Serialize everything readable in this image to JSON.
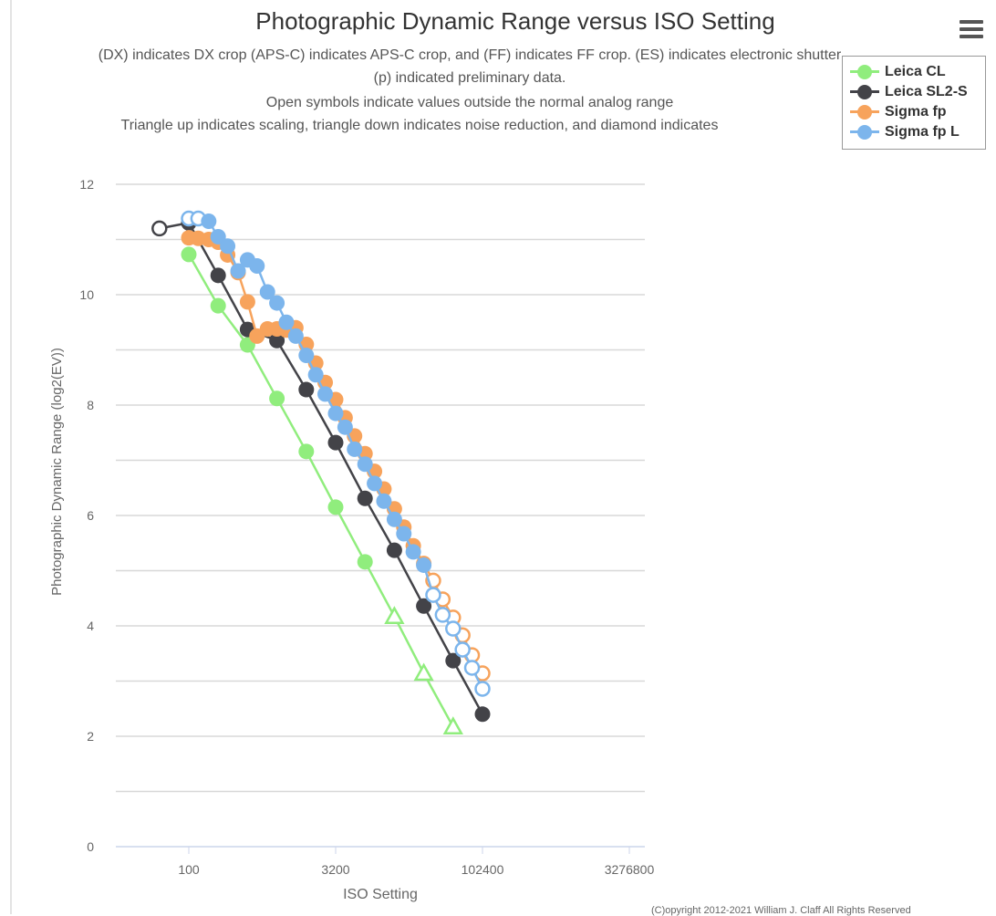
{
  "title": "Photographic Dynamic Range versus ISO Setting",
  "subtitle_lines": [
    "(DX) indicates DX crop (APS-C) indicates APS-C crop, and (FF) indicates FF crop. (ES) indicates electronic shutter",
    "(p) indicated preliminary data.",
    "Open symbols indicate values outside the normal analog range",
    "Triangle up indicates scaling, triangle down indicates noise reduction, and diamond indicates"
  ],
  "copyright": "(C)opyright 2012-2021 William J. Claff All Rights Reserved",
  "menu_icon": "hamburger-menu-icon",
  "chart_data": {
    "type": "line",
    "title": "Photographic Dynamic Range versus ISO Setting",
    "xlabel": "ISO Setting",
    "ylabel": "Photographic Dynamic Range (log2(EV))",
    "xscale": "log2",
    "xlim": [
      18,
      4700000
    ],
    "ylim": [
      0,
      12
    ],
    "xticks": [
      "100",
      "3200",
      "102400",
      "3276800"
    ],
    "xtick_values": [
      100,
      3200,
      102400,
      3276800
    ],
    "yticks": [
      "0",
      "2",
      "4",
      "6",
      "8",
      "10",
      "12"
    ],
    "ytick_values": [
      0,
      2,
      4,
      6,
      8,
      10,
      12
    ],
    "grid": true,
    "legend_position": "top-right",
    "series": [
      {
        "name": "Leica CL",
        "color": "#90ed7d",
        "x": [
          100,
          200,
          400,
          800,
          1600,
          3200,
          6400,
          12800,
          25600,
          51200
        ],
        "y": [
          10.73,
          9.8,
          9.09,
          8.12,
          7.16,
          6.15,
          5.16,
          4.17,
          3.14,
          2.17
        ],
        "marker": [
          "c",
          "c",
          "c",
          "c",
          "c",
          "c",
          "c",
          "to",
          "to",
          "to"
        ]
      },
      {
        "name": "Leica SL2-S",
        "color": "#434348",
        "x": [
          50,
          100,
          200,
          400,
          800,
          1600,
          3200,
          6400,
          12800,
          25600,
          51200,
          102400
        ],
        "y": [
          11.2,
          11.3,
          10.35,
          9.37,
          9.17,
          8.28,
          7.32,
          6.31,
          5.37,
          4.36,
          3.37,
          2.4
        ],
        "marker": [
          "o",
          "c",
          "c",
          "c",
          "c",
          "c",
          "c",
          "c",
          "c",
          "c",
          "c",
          "c"
        ]
      },
      {
        "name": "Sigma fp",
        "color": "#f7a35c",
        "x": [
          100,
          125,
          160,
          200,
          250,
          320,
          400,
          500,
          640,
          800,
          1000,
          1250,
          1600,
          2000,
          2500,
          3200,
          4000,
          5000,
          6400,
          8000,
          10000,
          12800,
          16000,
          20000,
          25600,
          32000,
          40000,
          51200,
          64000,
          80000,
          102400
        ],
        "y": [
          11.03,
          11.02,
          11.0,
          10.95,
          10.72,
          10.4,
          9.87,
          9.25,
          9.38,
          9.38,
          9.36,
          9.4,
          9.1,
          8.76,
          8.41,
          8.1,
          7.77,
          7.44,
          7.12,
          6.8,
          6.48,
          6.12,
          5.79,
          5.45,
          5.13,
          4.82,
          4.48,
          4.15,
          3.83,
          3.47,
          3.14
        ],
        "marker": [
          "c",
          "c",
          "c",
          "c",
          "c",
          "c",
          "c",
          "c",
          "c",
          "c",
          "c",
          "c",
          "c",
          "c",
          "c",
          "c",
          "c",
          "c",
          "c",
          "c",
          "c",
          "c",
          "c",
          "c",
          "c",
          "o",
          "o",
          "o",
          "o",
          "o",
          "o"
        ]
      },
      {
        "name": "Sigma fp L",
        "color": "#7cb5ec",
        "x": [
          100,
          125,
          160,
          200,
          250,
          320,
          400,
          500,
          640,
          800,
          1000,
          1250,
          1600,
          2000,
          2500,
          3200,
          4000,
          5000,
          6400,
          8000,
          10000,
          12800,
          16000,
          20000,
          25600,
          32000,
          40000,
          51200,
          64000,
          80000,
          102400
        ],
        "y": [
          11.38,
          11.38,
          11.33,
          11.05,
          10.88,
          10.43,
          10.63,
          10.52,
          10.05,
          9.85,
          9.5,
          9.25,
          8.9,
          8.55,
          8.2,
          7.85,
          7.6,
          7.2,
          6.93,
          6.58,
          6.26,
          5.93,
          5.67,
          5.34,
          5.1,
          4.56,
          4.2,
          3.95,
          3.57,
          3.24,
          2.86
        ],
        "marker": [
          "o",
          "o",
          "c",
          "c",
          "c",
          "c",
          "c",
          "c",
          "c",
          "c",
          "c",
          "c",
          "c",
          "c",
          "c",
          "c",
          "c",
          "c",
          "c",
          "c",
          "c",
          "c",
          "c",
          "c",
          "c",
          "o",
          "o",
          "o",
          "o",
          "o",
          "o"
        ]
      }
    ]
  }
}
